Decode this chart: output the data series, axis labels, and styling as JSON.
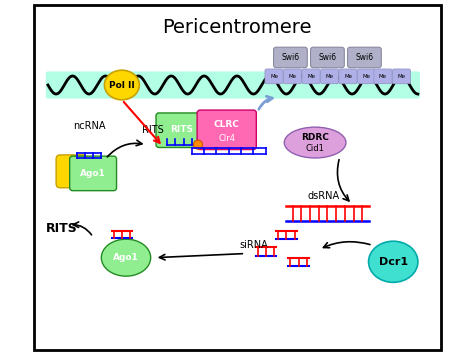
{
  "title": "Pericentromere",
  "bg_color": "#ffffff",
  "border_color": "#000000",
  "dna_color": "#000000",
  "dna_highlight": "#7fffd4",
  "pol2_color": "#ffd700",
  "pol2_label": "Pol II",
  "rits1_color": "#90ee90",
  "rits1_label": "RITS",
  "clrc_color": "#ff69b4",
  "clrc_label": "CLRC\nClr4",
  "rdrc_color": "#dda0dd",
  "rdrc_label": "RDRC\nCid1",
  "ago1_top_color": "#ffd700",
  "ago1_top_label": "Ago1",
  "ago1_bot_color": "#90ee90",
  "ago1_bot_label": "Ago1",
  "dcr1_color": "#40e0d0",
  "dcr1_label": "Dcr1",
  "swi6_color": "#b0b0c8",
  "swi6_label": "Swi6",
  "me_color": "#b0b0e8",
  "rna_color": "#ff0000",
  "dsrna_blue": "#0000ff",
  "dsrna_red": "#ff0000",
  "arrow_color": "#000000",
  "blue_arrow_color": "#7b9fd4",
  "nc_rna_label": "ncRNA",
  "rits_label_top": "RITS",
  "dsrna_label": "dsRNA",
  "sirna_label": "siRNA",
  "rits_label_bot": "RITS",
  "fig_width": 4.74,
  "fig_height": 3.55,
  "dpi": 100
}
